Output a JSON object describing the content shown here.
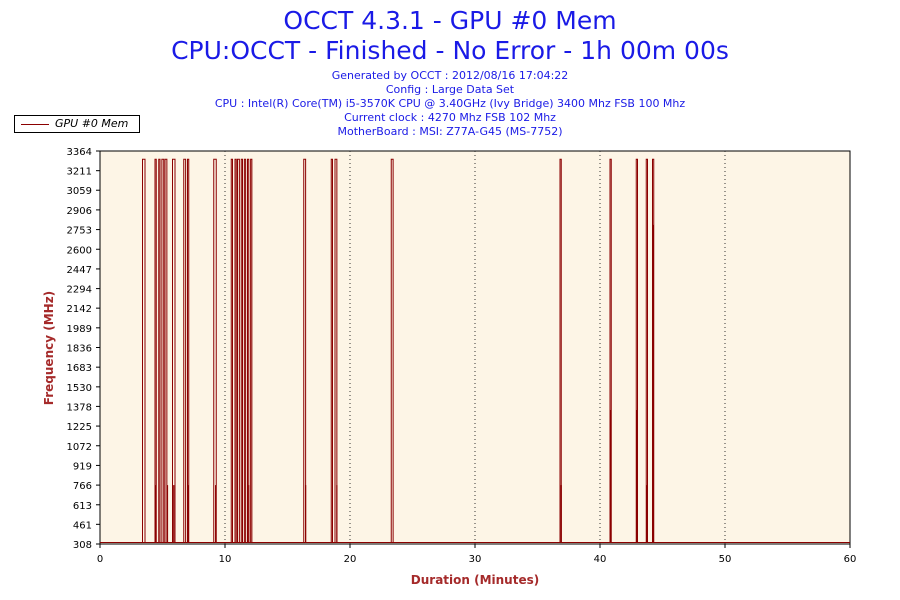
{
  "header": {
    "title_line1": "OCCT 4.3.1 - GPU #0 Mem",
    "title_line2": "CPU:OCCT - Finished - No Error - 1h 00m 00s",
    "generated": "Generated by OCCT : 2012/08/16 17:04:22",
    "config": "Config : Large Data Set",
    "cpu": "CPU : Intel(R) Core(TM) i5-3570K CPU @ 3.40GHz (Ivy Bridge) 3400 Mhz FSB 100 Mhz",
    "clock": "Current clock : 4270 Mhz FSB 102 Mhz",
    "motherboard": "MotherBoard : MSI: Z77A-G45 (MS-7752)"
  },
  "legend": {
    "label": "GPU #0 Mem"
  },
  "colors": {
    "title": "#1a1ae6",
    "series": "#8b0000",
    "plot_bg": "#fdf5e6",
    "axis_title": "#a52a2a"
  },
  "chart_data": {
    "type": "line",
    "xlabel": "Duration (Minutes)",
    "ylabel": "Frequency (MHz)",
    "xlim": [
      0,
      60
    ],
    "ylim": [
      308,
      3364
    ],
    "xticks": [
      0,
      10,
      20,
      30,
      40,
      50,
      60
    ],
    "yticks": [
      308,
      461,
      613,
      766,
      919,
      1072,
      1225,
      1378,
      1530,
      1683,
      1836,
      1989,
      2142,
      2294,
      2447,
      2600,
      2753,
      2906,
      3059,
      3211,
      3364
    ],
    "grid": "vertical dotted",
    "legend_position": "top-left",
    "series": [
      {
        "name": "GPU #0 Mem",
        "baseline": 320,
        "spikes": [
          {
            "x": 3.4,
            "x_end": 3.6,
            "y": 3300
          },
          {
            "x": 4.4,
            "x_end": 4.5,
            "y": 3300
          },
          {
            "x": 4.7,
            "x_end": 4.8,
            "y": 3300
          },
          {
            "x": 4.95,
            "x_end": 5.1,
            "y": 3300
          },
          {
            "x": 5.2,
            "x_end": 5.35,
            "y": 3300
          },
          {
            "x": 5.8,
            "x_end": 6.0,
            "y": 3300
          },
          {
            "x": 6.7,
            "x_end": 6.85,
            "y": 3300
          },
          {
            "x": 7.0,
            "x_end": 7.1,
            "y": 3300
          },
          {
            "x": 9.1,
            "x_end": 9.3,
            "y": 3300
          },
          {
            "x": 10.5,
            "x_end": 10.6,
            "y": 3300
          },
          {
            "x": 10.8,
            "x_end": 10.9,
            "y": 3300
          },
          {
            "x": 11.0,
            "x_end": 11.15,
            "y": 3300
          },
          {
            "x": 11.3,
            "x_end": 11.4,
            "y": 3300
          },
          {
            "x": 11.55,
            "x_end": 11.65,
            "y": 3300
          },
          {
            "x": 11.8,
            "x_end": 11.9,
            "y": 3300
          },
          {
            "x": 12.05,
            "x_end": 12.15,
            "y": 3300
          },
          {
            "x": 16.3,
            "x_end": 16.45,
            "y": 3300
          },
          {
            "x": 18.5,
            "x_end": 18.6,
            "y": 3300
          },
          {
            "x": 18.8,
            "x_end": 18.95,
            "y": 3300
          },
          {
            "x": 23.3,
            "x_end": 23.45,
            "y": 3300
          },
          {
            "x": 36.8,
            "x_end": 36.9,
            "y": 3300
          },
          {
            "x": 40.8,
            "x_end": 40.9,
            "y": 3300
          },
          {
            "x": 42.9,
            "x_end": 43.0,
            "y": 3300
          },
          {
            "x": 43.7,
            "x_end": 43.8,
            "y": 3300
          },
          {
            "x": 44.2,
            "x_end": 44.3,
            "y": 3300
          }
        ],
        "partial_levels": [
          {
            "x": 4.45,
            "y": 766
          },
          {
            "x": 5.4,
            "y": 766
          },
          {
            "x": 5.9,
            "y": 766
          },
          {
            "x": 7.05,
            "y": 766
          },
          {
            "x": 9.25,
            "y": 766
          },
          {
            "x": 11.9,
            "y": 766
          },
          {
            "x": 16.45,
            "y": 766
          },
          {
            "x": 18.95,
            "y": 766
          },
          {
            "x": 36.9,
            "y": 766
          },
          {
            "x": 40.85,
            "y": 1350
          },
          {
            "x": 42.95,
            "y": 1350
          },
          {
            "x": 43.75,
            "y": 766
          },
          {
            "x": 44.25,
            "y": 2790
          }
        ]
      }
    ]
  }
}
